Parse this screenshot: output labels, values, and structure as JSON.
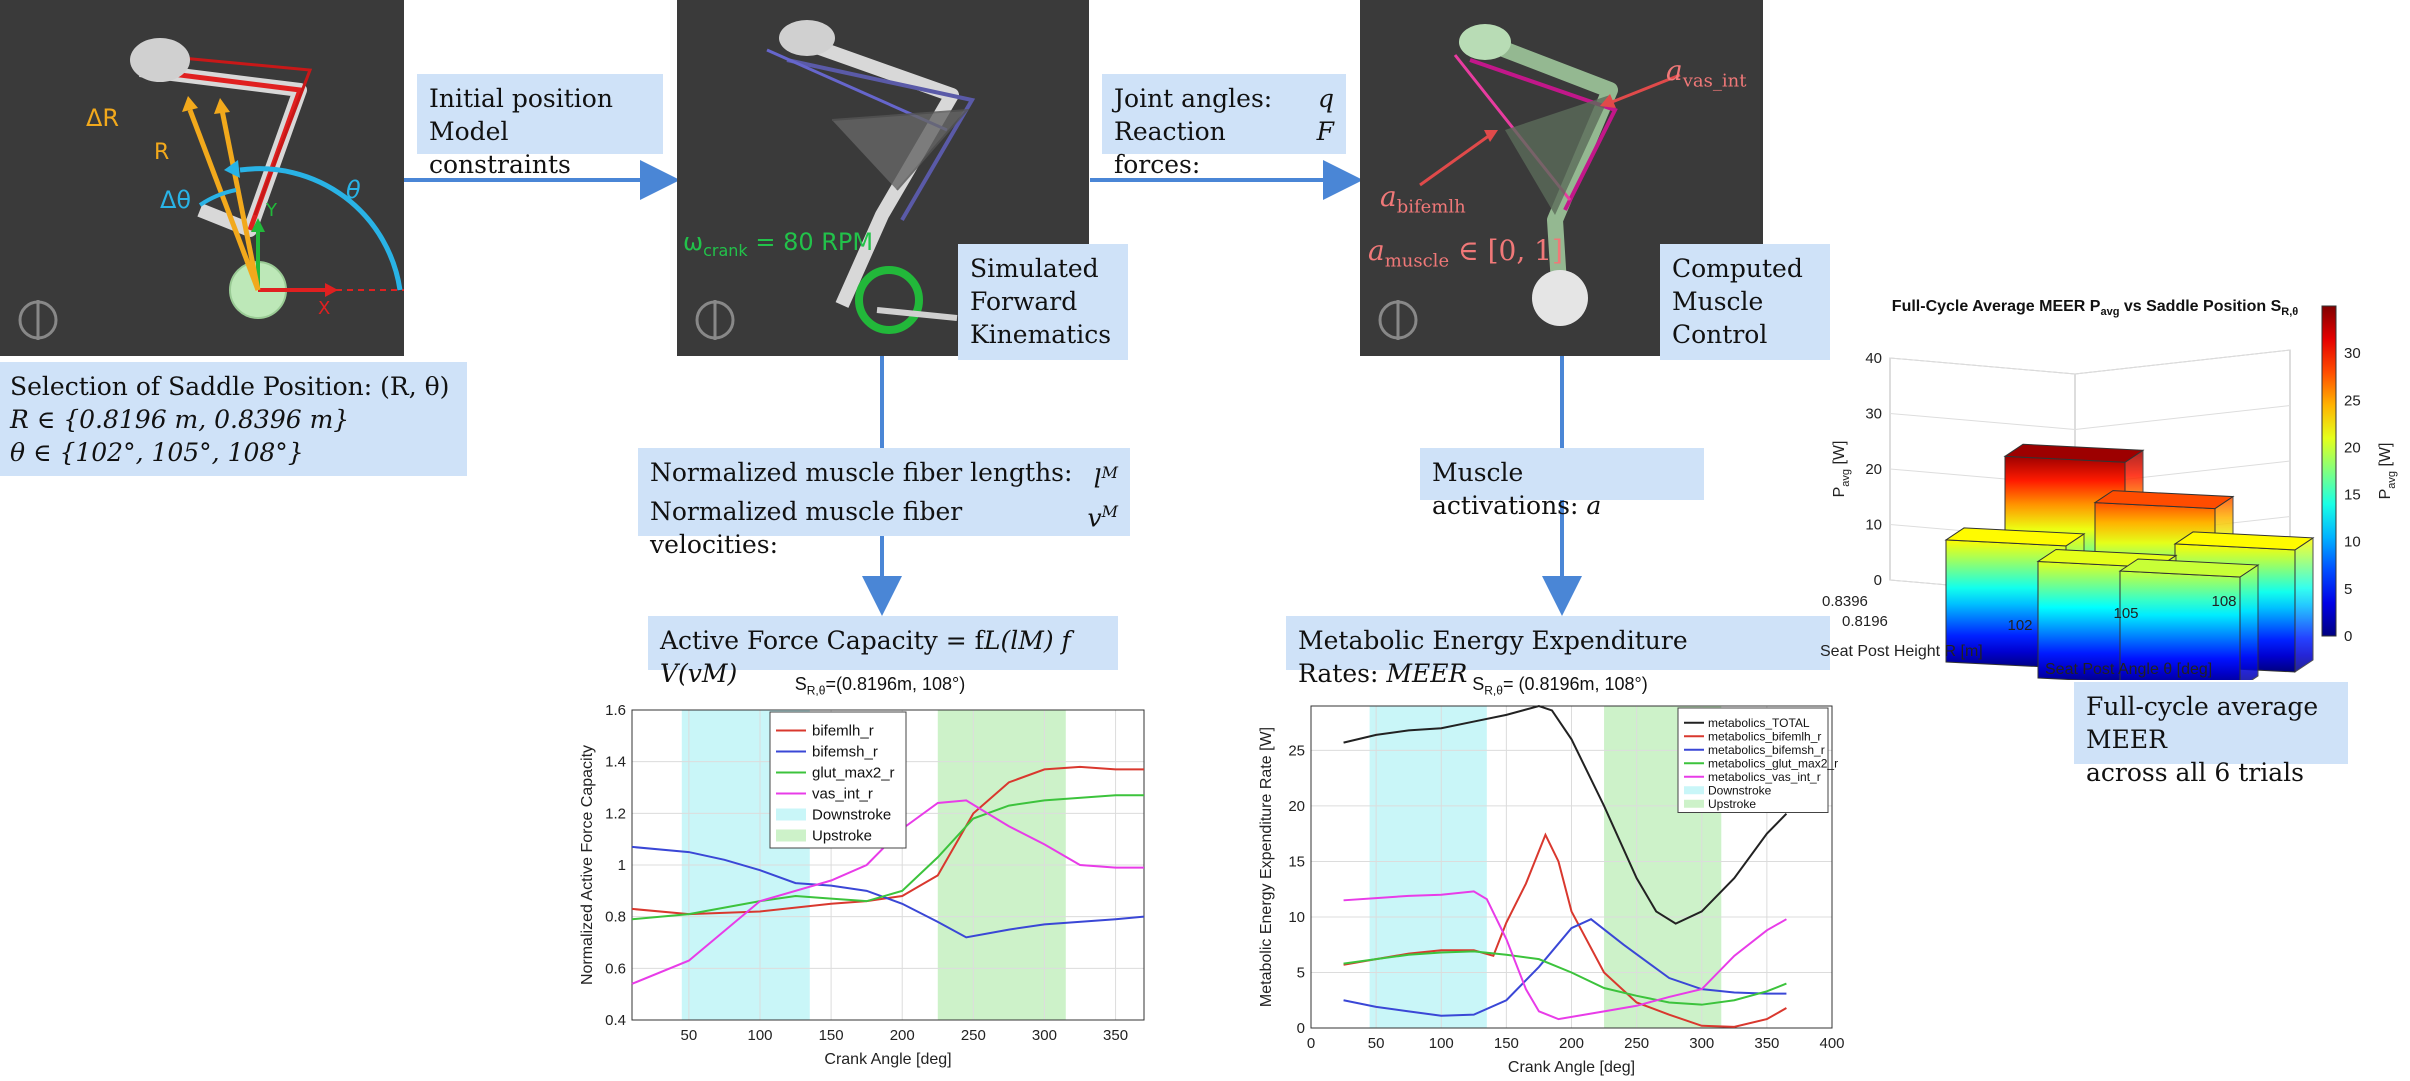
{
  "colors": {
    "panel_bg": "#3a3a3a",
    "label_bg": "#cfe2f8",
    "arrow": "#4a86d6",
    "downstroke": "#c9f6f8",
    "upstroke": "#cdf2c9"
  },
  "panel1": {
    "delta_r": "ΔR",
    "r": "R",
    "delta_theta": "Δθ",
    "theta": "θ",
    "y": "Y",
    "x": "X"
  },
  "panel2": {
    "omega": "ω",
    "omega_sub": "crank",
    "omega_val": " = 80 RPM"
  },
  "panel3": {
    "a_vas": "a",
    "a_vas_sub": "vas_int",
    "a_bif": "a",
    "a_bif_sub": "bifemlh",
    "a_muscle": "a",
    "a_muscle_sub": "muscle",
    "a_muscle_val": " ∈ [0, 1]"
  },
  "labels": {
    "saddle": {
      "line1": "Selection of Saddle Position: (R, θ)",
      "line2": "R ∈ {0.8196 m, 0.8396 m}",
      "line3": "θ ∈ {102°, 105°, 108°}"
    },
    "initial": {
      "line1": "Initial position",
      "line2": "Model constraints"
    },
    "joint": {
      "line1": "Joint angles:",
      "line1_sym": "q",
      "line2": "Reaction forces:",
      "line2_sym": "F"
    },
    "simulated": {
      "line1": "Simulated",
      "line2": "Forward",
      "line3": "Kinematics"
    },
    "computed": {
      "line1": "Computed",
      "line2": "Muscle",
      "line3": "Control"
    },
    "fiber": {
      "line1": "Normalized muscle fiber lengths:",
      "line1_sym": "l",
      "line1_sup": "M",
      "line2": "Normalized muscle fiber velocities:",
      "line2_sym": "v",
      "line2_sup": "M"
    },
    "activations": {
      "text": "Muscle activations:",
      "sym": "a"
    },
    "afc": {
      "text": "Active Force Capacity = f",
      "formula": "L(lM) f V(vM)"
    },
    "meer": {
      "text": "Metabolic Energy Expenditure Rates:",
      "sym": "MEER"
    },
    "fullcycle": {
      "line1": "Full-cycle average MEER",
      "line2": "across all 6 trials"
    }
  },
  "chart_data": [
    {
      "type": "line",
      "title": "S",
      "title_sub": "R,θ",
      "title_rest": "=(0.8196m, 108°)",
      "xlabel": "Crank Angle [deg]",
      "ylabel": "Normalized Active Force Capacity",
      "xlim": [
        10,
        370
      ],
      "ylim": [
        0.4,
        1.6
      ],
      "xticks": [
        50,
        100,
        150,
        200,
        250,
        300,
        350
      ],
      "yticks": [
        0.4,
        0.6,
        0.8,
        1.0,
        1.2,
        1.4,
        1.6
      ],
      "ytick_labels": [
        "0.4",
        "0.6",
        "0.8",
        "1",
        "1.2",
        "1.4",
        "1.6"
      ],
      "grid": true,
      "legend": "top-center",
      "bands": [
        {
          "name": "Downstroke",
          "from": 45,
          "to": 135,
          "color": "#c9f6f8"
        },
        {
          "name": "Upstroke",
          "from": 225,
          "to": 315,
          "color": "#cdf2c9"
        }
      ],
      "series": [
        {
          "name": "bifemlh_r",
          "color": "#d9382e",
          "x": [
            10,
            50,
            100,
            150,
            175,
            200,
            225,
            250,
            275,
            300,
            325,
            350,
            370
          ],
          "y": [
            0.83,
            0.81,
            0.82,
            0.85,
            0.86,
            0.88,
            0.96,
            1.2,
            1.32,
            1.37,
            1.38,
            1.37,
            1.37
          ]
        },
        {
          "name": "bifemsh_r",
          "color": "#3a47d6",
          "x": [
            10,
            50,
            75,
            100,
            125,
            150,
            175,
            200,
            225,
            245,
            275,
            300,
            350,
            370
          ],
          "y": [
            1.07,
            1.05,
            1.02,
            0.98,
            0.93,
            0.92,
            0.9,
            0.85,
            0.78,
            0.72,
            0.75,
            0.77,
            0.79,
            0.8
          ]
        },
        {
          "name": "glut_max2_r",
          "color": "#3cc33c",
          "x": [
            10,
            50,
            100,
            125,
            150,
            175,
            200,
            225,
            250,
            275,
            300,
            350,
            370
          ],
          "y": [
            0.79,
            0.81,
            0.86,
            0.88,
            0.87,
            0.86,
            0.9,
            1.03,
            1.18,
            1.23,
            1.25,
            1.27,
            1.27
          ]
        },
        {
          "name": "vas_int_r",
          "color": "#e83ce8",
          "x": [
            10,
            50,
            100,
            150,
            175,
            200,
            225,
            245,
            260,
            275,
            300,
            325,
            350,
            370
          ],
          "y": [
            0.54,
            0.63,
            0.86,
            0.94,
            1.0,
            1.14,
            1.24,
            1.25,
            1.2,
            1.15,
            1.08,
            1.0,
            0.99,
            0.99
          ]
        }
      ]
    },
    {
      "type": "line",
      "title": "S",
      "title_sub": "R,θ",
      "title_rest": "= (0.8196m, 108°)",
      "xlabel": "Crank Angle [deg]",
      "ylabel": "Metabolic Energy Expenditure Rate [W]",
      "xlim": [
        0,
        400
      ],
      "ylim": [
        0,
        29
      ],
      "xticks": [
        0,
        50,
        100,
        150,
        200,
        250,
        300,
        350,
        400
      ],
      "yticks": [
        0,
        5,
        10,
        15,
        20,
        25
      ],
      "grid": true,
      "legend": "top-right",
      "bands": [
        {
          "name": "Downstroke",
          "from": 45,
          "to": 135,
          "color": "#c9f6f8"
        },
        {
          "name": "Upstroke",
          "from": 225,
          "to": 315,
          "color": "#cdf2c9"
        }
      ],
      "series": [
        {
          "name": "metabolics_TOTAL",
          "color": "#222222",
          "x": [
            25,
            50,
            75,
            100,
            125,
            150,
            175,
            185,
            200,
            225,
            250,
            265,
            280,
            300,
            325,
            350,
            365
          ],
          "y": [
            25.7,
            26.4,
            26.8,
            27.0,
            27.6,
            28.2,
            29.0,
            28.6,
            26.0,
            20.0,
            13.5,
            10.5,
            9.4,
            10.5,
            13.5,
            17.5,
            19.3
          ]
        },
        {
          "name": "metabolics_bifemlh_r",
          "color": "#d9382e",
          "x": [
            25,
            50,
            75,
            100,
            125,
            140,
            150,
            165,
            180,
            190,
            200,
            225,
            250,
            275,
            300,
            325,
            350,
            365
          ],
          "y": [
            5.7,
            6.2,
            6.7,
            7.0,
            7.0,
            6.5,
            9.5,
            13.0,
            17.4,
            15.0,
            10.5,
            5.0,
            2.3,
            1.2,
            0.2,
            0.1,
            0.8,
            1.8
          ]
        },
        {
          "name": "metabolics_bifemsh_r",
          "color": "#3a47d6",
          "x": [
            25,
            50,
            75,
            100,
            125,
            150,
            175,
            200,
            215,
            240,
            275,
            300,
            325,
            350,
            365
          ],
          "y": [
            2.5,
            1.9,
            1.5,
            1.1,
            1.2,
            2.5,
            5.5,
            9.0,
            9.8,
            7.5,
            4.5,
            3.5,
            3.2,
            3.1,
            3.1
          ]
        },
        {
          "name": "metabolics_glut_max2_r",
          "color": "#3cc33c",
          "x": [
            25,
            50,
            75,
            100,
            125,
            150,
            175,
            200,
            225,
            250,
            275,
            300,
            325,
            350,
            365
          ],
          "y": [
            5.8,
            6.2,
            6.6,
            6.8,
            6.9,
            6.6,
            6.2,
            5.0,
            3.6,
            2.9,
            2.3,
            2.1,
            2.5,
            3.3,
            4.0
          ]
        },
        {
          "name": "metabolics_vas_int_r",
          "color": "#e83ce8",
          "x": [
            25,
            50,
            75,
            100,
            125,
            135,
            150,
            165,
            175,
            190,
            225,
            250,
            275,
            300,
            325,
            350,
            365
          ],
          "y": [
            11.5,
            11.7,
            11.9,
            12.0,
            12.3,
            11.6,
            8.0,
            3.5,
            1.5,
            0.8,
            1.5,
            2.0,
            2.8,
            3.5,
            6.5,
            8.8,
            9.8
          ]
        }
      ]
    },
    {
      "type": "bar3d",
      "title": "Full-Cycle Average MEER P",
      "title_sub1": "avg",
      "title_mid": " vs Saddle Position S",
      "title_sub2": "R,θ",
      "xlabel": "Seat Post Height R [m]",
      "ylabel": "Seat Post Angle θ [deg]",
      "zlabel": "P",
      "zlabel_sub": "avg",
      "zlabel_unit": " [W]",
      "zlim": [
        0,
        40
      ],
      "zticks": [
        0,
        10,
        20,
        30,
        40
      ],
      "colorbar_label": "P",
      "colorbar_sub": "avg",
      "colorbar_unit": " [W]",
      "colorbar_ticks": [
        0,
        5,
        10,
        15,
        20,
        25,
        30
      ],
      "clim": [
        0,
        35
      ],
      "r_values": [
        "0.8396",
        "0.8196"
      ],
      "theta_values": [
        "102",
        "105",
        "108"
      ],
      "bars": [
        {
          "r": "0.8396",
          "theta": "102",
          "value": 34
        },
        {
          "r": "0.8396",
          "theta": "105",
          "value": 28
        },
        {
          "r": "0.8396",
          "theta": "108",
          "value": 22
        },
        {
          "r": "0.8196",
          "theta": "102",
          "value": 22
        },
        {
          "r": "0.8196",
          "theta": "105",
          "value": 21
        },
        {
          "r": "0.8196",
          "theta": "108",
          "value": 20
        }
      ]
    }
  ]
}
